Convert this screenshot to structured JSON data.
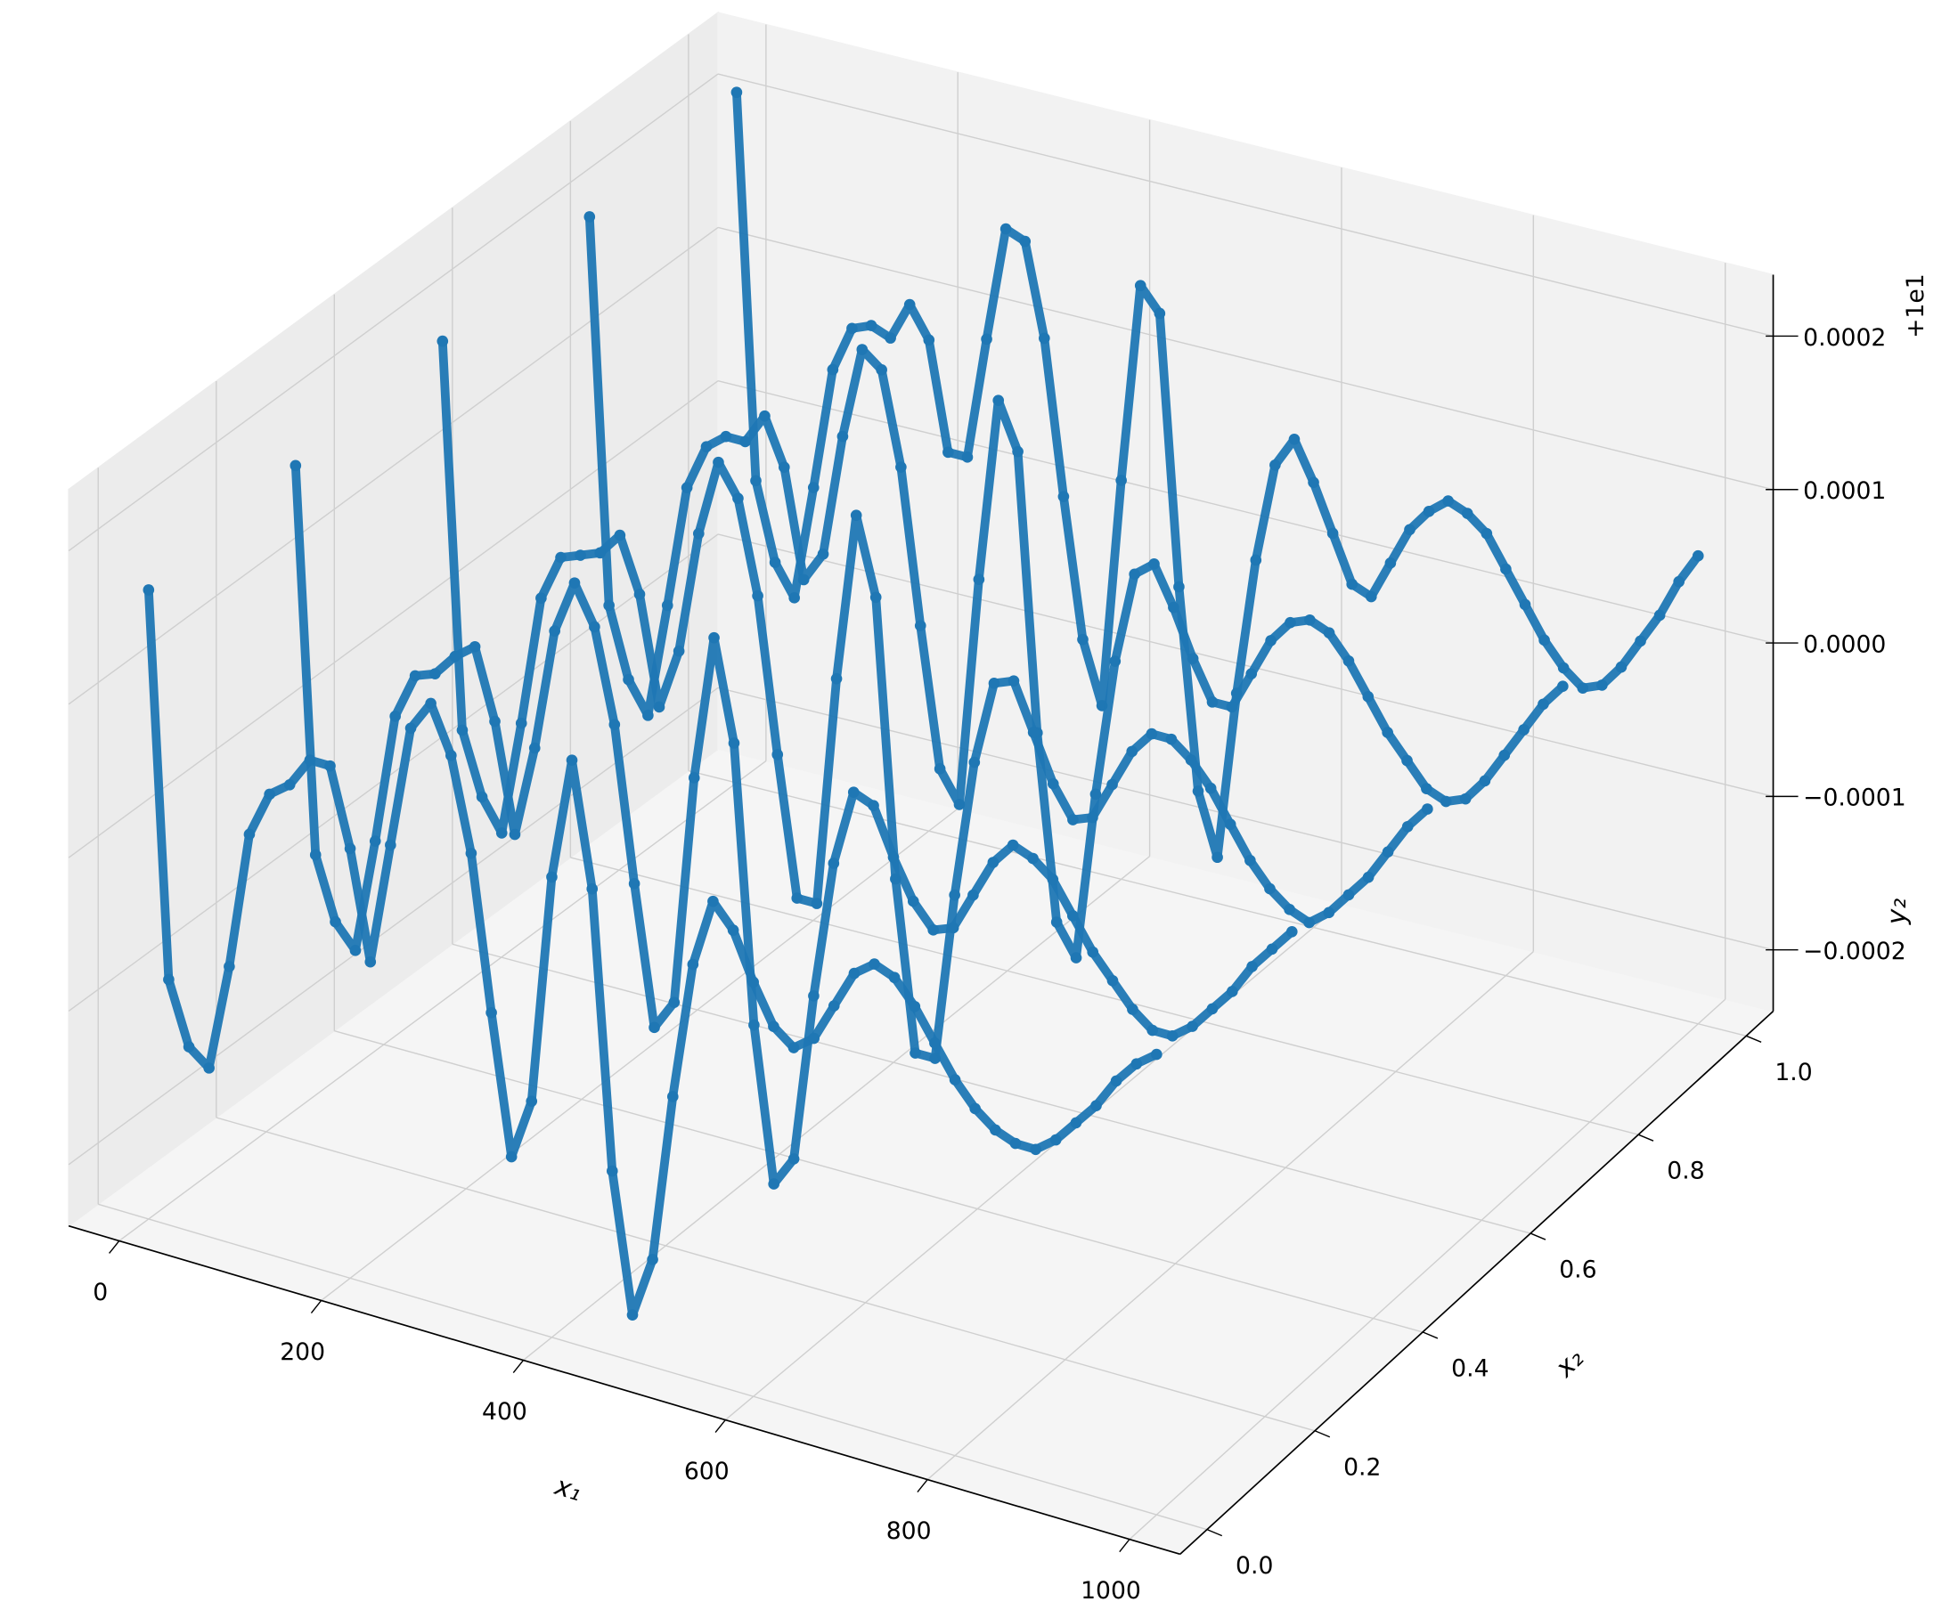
{
  "chart_data": {
    "type": "scatter3d",
    "xlabel": "x₁",
    "ylabel": "x₂",
    "zlabel": "y₂",
    "offset_text": "+1e1",
    "xlim": [
      -50,
      1050
    ],
    "xticks": [
      0,
      200,
      400,
      600,
      800,
      1000
    ],
    "ylim": [
      -0.05,
      1.05
    ],
    "yticks": [
      {
        "value": 0,
        "label": "0.0"
      },
      0.2,
      0.4,
      0.6,
      0.8,
      {
        "value": 1,
        "label": "1.0"
      }
    ],
    "zlim": [
      -0.00024,
      0.00024
    ],
    "zticks": [
      {
        "value": -0.0002,
        "label": "−0.0002"
      },
      {
        "value": -0.0001,
        "label": "−0.0001"
      },
      {
        "value": 0,
        "label": "0.0000"
      },
      0.0001,
      0.0002
    ],
    "grid": true,
    "x": [
      0,
      20,
      40,
      60,
      80,
      100,
      120,
      140,
      160,
      180,
      200,
      220,
      240,
      260,
      280,
      300,
      320,
      340,
      360,
      380,
      400,
      420,
      440,
      460,
      480,
      500,
      520,
      540,
      560,
      580,
      600,
      620,
      640,
      660,
      680,
      700,
      720,
      740,
      760,
      780,
      800,
      820,
      840,
      860,
      880,
      900,
      920,
      940,
      960,
      980,
      1000
    ],
    "series": [
      {
        "color": "#1f77b4",
        "y": 0,
        "values": [
          0.00017,
          -8e-05,
          -0.00012,
          -0.00013,
          -6e-05,
          3e-05,
          6e-05,
          7e-05,
          9e-05,
          9e-05,
          4e-05,
          -3e-05,
          5e-05,
          0.00013,
          0.00015,
          0.00012,
          6e-05,
          -4e-05,
          -0.00013,
          -9e-05,
          6e-05,
          0.00014,
          6e-05,
          -0.00012,
          -0.00021,
          -0.00017,
          -6e-05,
          3e-05,
          7.5e-05,
          6e-05,
          3e-05,
          5e-06,
          -5e-06,
          5e-06,
          3e-05,
          5.5e-05,
          6.5e-05,
          6e-05,
          4.5e-05,
          2.5e-05,
          5e-06,
          -1e-05,
          -2e-05,
          -2.5e-05,
          -2.5e-05,
          -1.5e-05,
          0,
          1.5e-05,
          3.5e-05,
          5e-05,
          6e-05
        ]
      },
      {
        "color": "#1f77b4",
        "y": 0.25,
        "values": [
          0.00018,
          -7e-05,
          -0.00011,
          -0.000125,
          -5e-05,
          3.5e-05,
          6.5e-05,
          7e-05,
          8.5e-05,
          9.5e-05,
          5e-05,
          -2e-05,
          4e-05,
          0.00012,
          0.000155,
          0.00013,
          7e-05,
          -3e-05,
          -0.00012,
          -0.0001,
          5e-05,
          0.000145,
          8e-05,
          -0.0001,
          -0.0002,
          -0.00018,
          -7e-05,
          2e-05,
          7e-05,
          6.5e-05,
          3.5e-05,
          1e-05,
          -5e-06,
          0,
          2.5e-05,
          5e-05,
          6.5e-05,
          6e-05,
          5e-05,
          3e-05,
          1e-05,
          -5e-06,
          -2e-05,
          -3e-05,
          -3e-05,
          -2e-05,
          -5e-06,
          1e-05,
          3e-05,
          4.5e-05,
          6e-05
        ]
      },
      {
        "color": "#1f77b4",
        "y": 0.5,
        "values": [
          0.00019,
          -6e-05,
          -0.0001,
          -0.00012,
          -4.5e-05,
          4e-05,
          7e-05,
          7.5e-05,
          8e-05,
          9.5e-05,
          6e-05,
          -1e-05,
          3e-05,
          0.00011,
          0.00016,
          0.00014,
          8e-05,
          -2e-05,
          -0.00011,
          -0.00011,
          4e-05,
          0.00015,
          0.0001,
          -8e-05,
          -0.00019,
          -0.00019,
          -8e-05,
          1e-05,
          6.5e-05,
          7e-05,
          4e-05,
          1e-05,
          -1e-05,
          -5e-06,
          2e-05,
          4.5e-05,
          6e-05,
          6e-05,
          5e-05,
          3.5e-05,
          1.5e-05,
          -5e-06,
          -2e-05,
          -3e-05,
          -3.5e-05,
          -2.5e-05,
          -1e-05,
          5e-06,
          2.5e-05,
          4.5e-05,
          6e-05
        ]
      },
      {
        "color": "#1f77b4",
        "y": 0.75,
        "values": [
          0.0002,
          -5e-05,
          -9.5e-05,
          -0.000115,
          -4e-05,
          4e-05,
          7e-05,
          8e-05,
          8e-05,
          0.0001,
          7e-05,
          0,
          2e-05,
          0.0001,
          0.00016,
          0.00015,
          9e-05,
          -1e-05,
          -0.0001,
          -0.00012,
          3e-05,
          0.00015,
          0.00012,
          -6e-05,
          -0.00018,
          -0.0002,
          -9e-05,
          0,
          6e-05,
          7e-05,
          4.5e-05,
          1.5e-05,
          -1e-05,
          -1e-05,
          1.5e-05,
          4e-05,
          5.5e-05,
          6e-05,
          5.5e-05,
          4e-05,
          2e-05,
          0,
          -1.5e-05,
          -3e-05,
          -3.5e-05,
          -3e-05,
          -1.5e-05,
          5e-06,
          2.5e-05,
          4.5e-05,
          6e-05
        ]
      },
      {
        "color": "#1f77b4",
        "y": 1,
        "values": [
          0.00021,
          -4e-05,
          -9e-05,
          -0.00011,
          -3.5e-05,
          4.5e-05,
          7.5e-05,
          8e-05,
          7.5e-05,
          0.0001,
          8e-05,
          1e-05,
          1e-05,
          9e-05,
          0.000165,
          0.00016,
          0.0001,
          0,
          -9e-05,
          -0.00013,
          2e-05,
          0.00015,
          0.000135,
          -4e-05,
          -0.00017,
          -0.00021,
          -0.0001,
          -1e-05,
          5.5e-05,
          7.5e-05,
          5e-05,
          2e-05,
          -1e-05,
          -1.5e-05,
          1e-05,
          3.5e-05,
          5e-05,
          6e-05,
          5.5e-05,
          4.5e-05,
          2.5e-05,
          5e-06,
          -1.5e-05,
          -3e-05,
          -4e-05,
          -3.5e-05,
          -2e-05,
          0,
          2e-05,
          4.5e-05,
          6.5e-05
        ]
      }
    ]
  }
}
